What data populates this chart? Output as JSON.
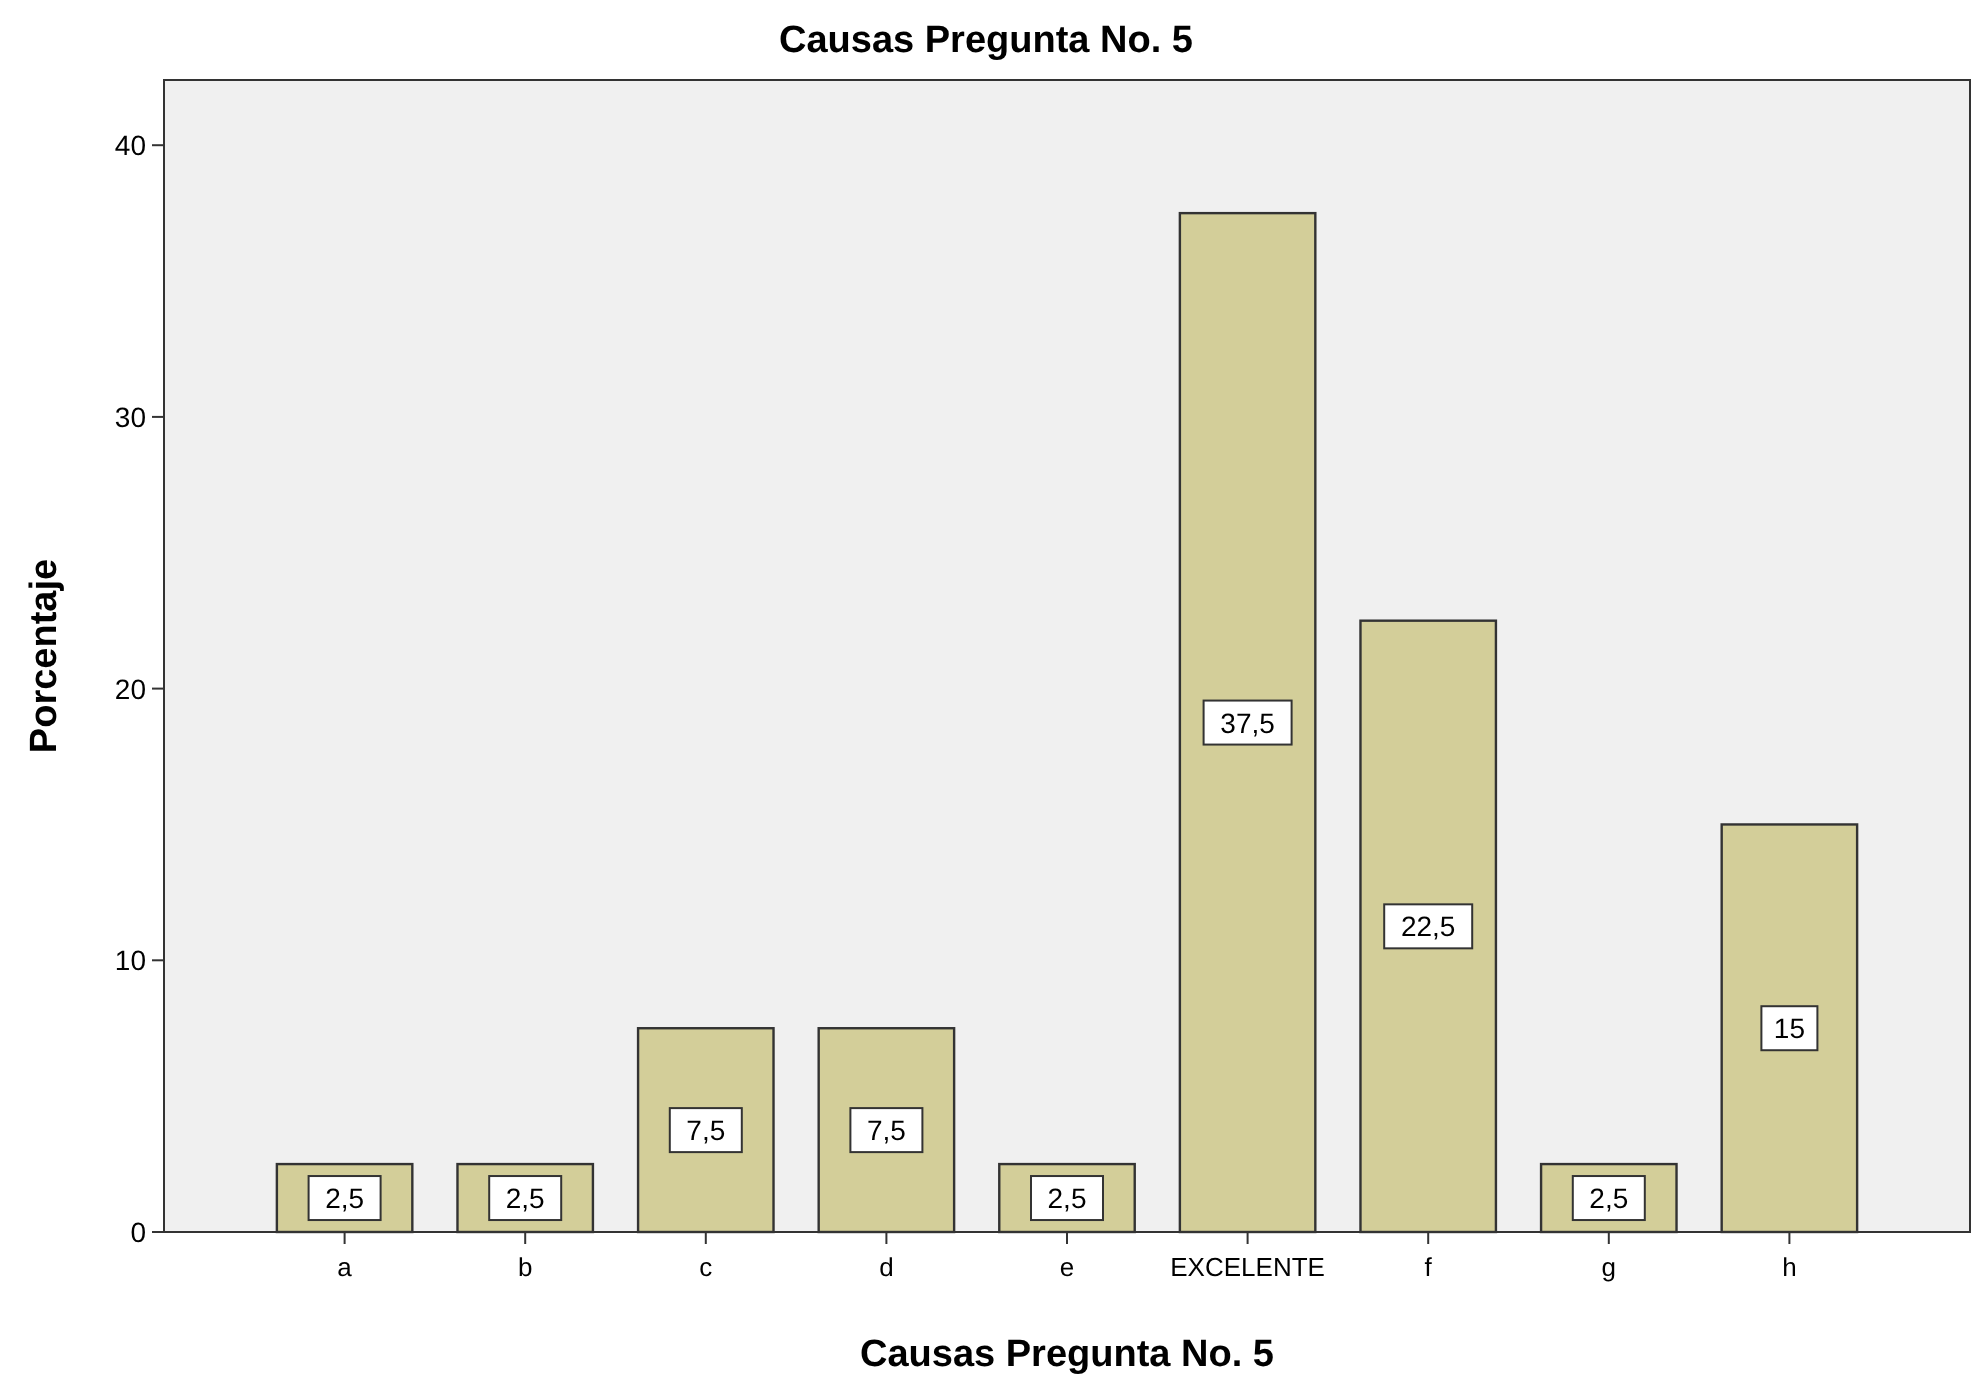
{
  "chart_data": {
    "type": "bar",
    "title": "Causas Pregunta No. 5",
    "xlabel": "Causas Pregunta No. 5",
    "ylabel": "Porcentaje",
    "categories": [
      "a",
      "b",
      "c",
      "d",
      "e",
      "EXCELENTE",
      "f",
      "g",
      "h"
    ],
    "values": [
      2.5,
      2.5,
      7.5,
      7.5,
      2.5,
      37.5,
      22.5,
      2.5,
      15
    ],
    "value_labels": [
      "2,5",
      "2,5",
      "7,5",
      "7,5",
      "2,5",
      "37,5",
      "22,5",
      "2,5",
      "15"
    ],
    "color": "#d3ce99",
    "ylim": [
      0,
      42.4
    ],
    "yticks": [
      0,
      10,
      20,
      30,
      40
    ],
    "grid": false
  }
}
